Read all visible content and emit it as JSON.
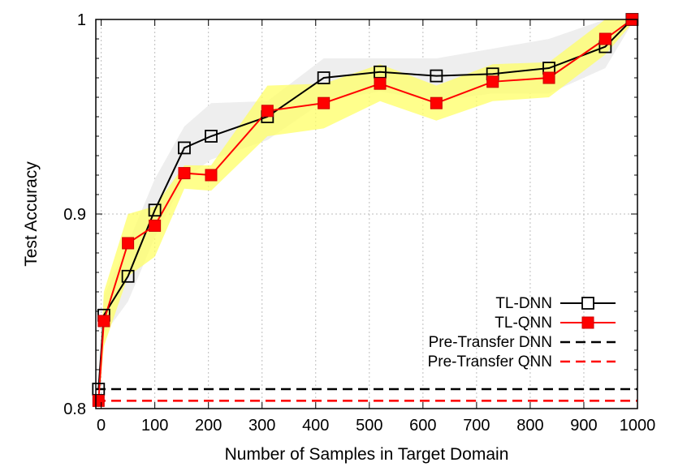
{
  "chart_data": {
    "type": "line",
    "xlabel": "Number of Samples in Target Domain",
    "ylabel": "Test Accuracy",
    "xlim": [
      -10,
      1000
    ],
    "ylim": [
      0.8,
      1.0
    ],
    "x_ticks": [
      0,
      100,
      200,
      300,
      400,
      500,
      600,
      700,
      800,
      900,
      1000
    ],
    "x_tick_labels": [
      "0",
      "100",
      "200",
      "300",
      "400",
      "500",
      "600",
      "700",
      "800",
      "900",
      "1000"
    ],
    "y_ticks": [
      0.8,
      0.9,
      1.0
    ],
    "y_tick_labels": [
      "0.8",
      "0.9",
      "1"
    ],
    "grid": true,
    "legend_position": "bottom-right",
    "series": [
      {
        "name": "TL-DNN",
        "style": "solid",
        "color": "#000000",
        "marker": "open-square",
        "x": [
          -5,
          5,
          50,
          100,
          155,
          205,
          310,
          415,
          520,
          625,
          730,
          835,
          940,
          990
        ],
        "y": [
          0.81,
          0.848,
          0.868,
          0.902,
          0.934,
          0.94,
          0.95,
          0.97,
          0.973,
          0.971,
          0.972,
          0.975,
          0.986,
          1.0
        ],
        "band_lower": [
          0.806,
          0.838,
          0.855,
          0.888,
          0.918,
          0.928,
          0.938,
          0.958,
          0.963,
          0.958,
          0.962,
          0.962,
          0.975,
          0.998
        ],
        "band_upper": [
          0.814,
          0.858,
          0.885,
          0.918,
          0.945,
          0.957,
          0.958,
          0.98,
          0.98,
          0.98,
          0.985,
          0.99,
          1.0,
          1.0
        ],
        "band_color": "#eeeeee"
      },
      {
        "name": "TL-QNN",
        "style": "solid",
        "color": "#ff0000",
        "marker": "filled-square",
        "x": [
          -5,
          5,
          50,
          100,
          155,
          205,
          310,
          415,
          520,
          625,
          730,
          835,
          940,
          990
        ],
        "y": [
          0.804,
          0.845,
          0.885,
          0.894,
          0.921,
          0.92,
          0.953,
          0.957,
          0.967,
          0.957,
          0.968,
          0.97,
          0.99,
          1.0
        ],
        "band_lower": [
          0.8,
          0.832,
          0.868,
          0.878,
          0.913,
          0.912,
          0.94,
          0.944,
          0.958,
          0.948,
          0.958,
          0.96,
          0.982,
          0.998
        ],
        "band_upper": [
          0.808,
          0.86,
          0.9,
          0.904,
          0.925,
          0.925,
          0.966,
          0.967,
          0.977,
          0.966,
          0.977,
          0.978,
          1.0,
          1.0
        ],
        "band_color": "#ffff66"
      },
      {
        "name": "Pre-Transfer DNN",
        "style": "dashed",
        "color": "#000000",
        "marker": "none",
        "y_const": 0.81
      },
      {
        "name": "Pre-Transfer QNN",
        "style": "dashed",
        "color": "#ff0000",
        "marker": "none",
        "y_const": 0.804
      }
    ]
  }
}
